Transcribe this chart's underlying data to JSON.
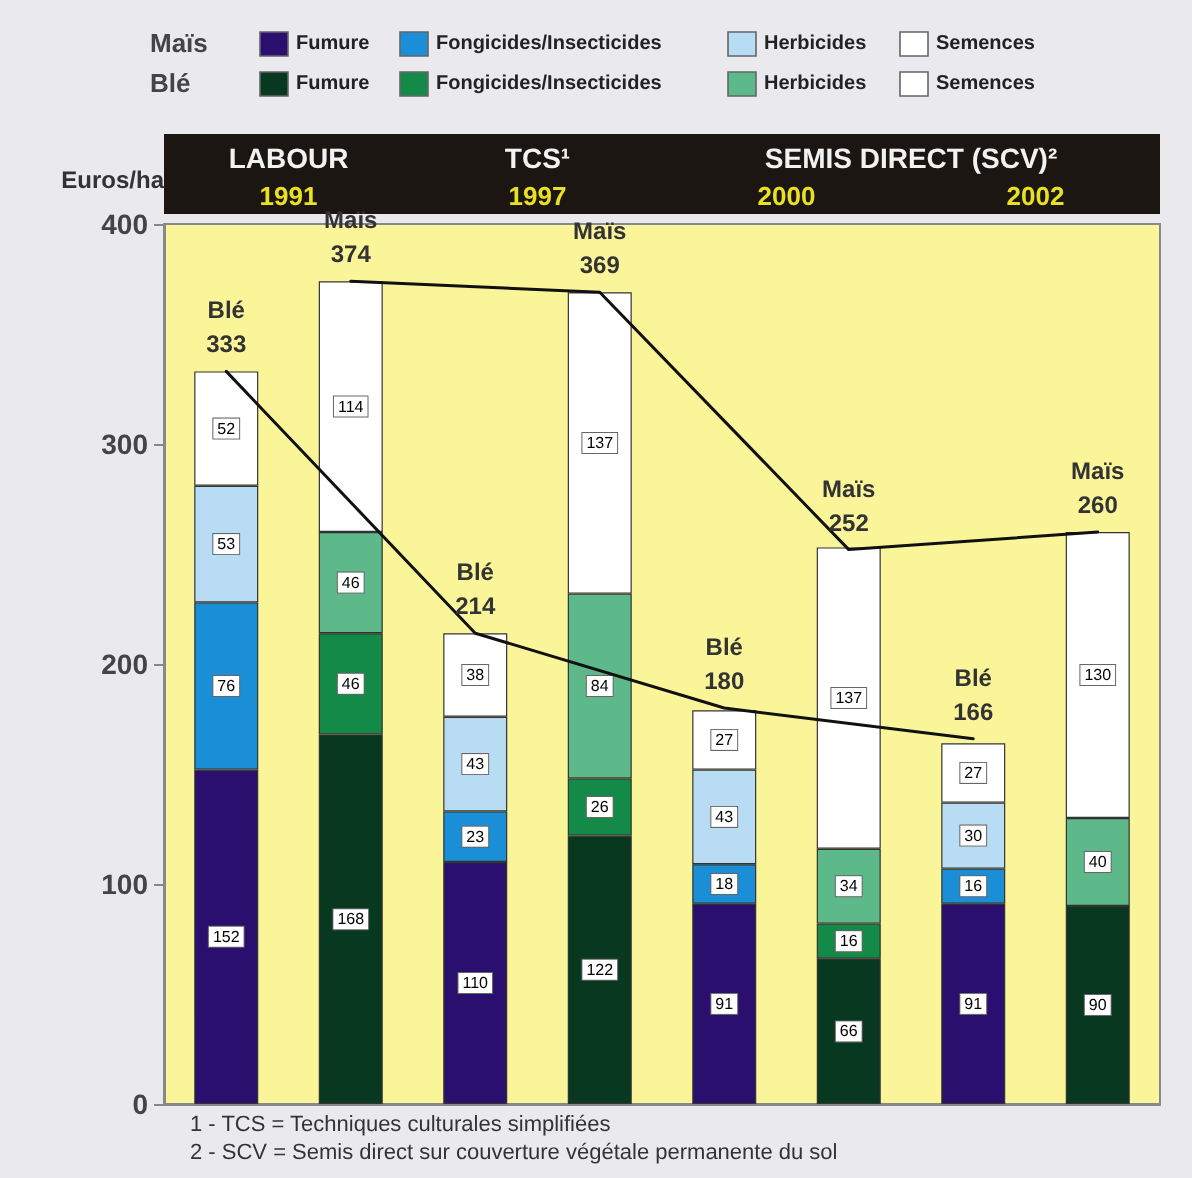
{
  "chart_data": {
    "type": "bar",
    "stacked": true,
    "data_labels": true,
    "legend": "top",
    "grid": false,
    "marker": "none",
    "line_style": "solid",
    "ylabel": "Euros/ha",
    "ylim": [
      0,
      400
    ],
    "yticks": [
      0,
      100,
      200,
      300,
      400
    ],
    "categories": [
      null,
      null,
      null,
      null,
      null,
      null,
      null,
      null
    ],
    "annotations": [
      "Maïs",
      "Blé",
      "LABOUR",
      "1991",
      "TCS¹",
      "1997",
      "SEMIS DIRECT (SCV)²",
      "2000",
      "2002",
      "1 - TCS = Techniques culturales simplifiées",
      "2 - SCV = Semis direct sur couverture végétale permanente du sol"
    ],
    "series": [
      {
        "name": "Fumure",
        "color": "#2a0f6e",
        "values": [
          152,
          null,
          110,
          null,
          91,
          null,
          91,
          null
        ]
      },
      {
        "name": "Fongicides/Insecticides",
        "color": "#1a8fd8",
        "values": [
          76,
          null,
          23,
          null,
          18,
          null,
          16,
          null
        ]
      },
      {
        "name": "Herbicides",
        "color": "#b8dcf4",
        "values": [
          53,
          null,
          43,
          null,
          43,
          null,
          30,
          null
        ]
      },
      {
        "name": "Semences",
        "color": "#ffffff",
        "values": [
          52,
          null,
          38,
          null,
          27,
          null,
          27,
          null
        ]
      },
      {
        "name": "Fumure",
        "color": "#083820",
        "values": [
          null,
          168,
          null,
          122,
          null,
          66,
          null,
          90
        ]
      },
      {
        "name": "Fongicides/Insecticides",
        "color": "#138a48",
        "values": [
          null,
          46,
          null,
          26,
          null,
          16,
          null,
          null
        ]
      },
      {
        "name": "Herbicides",
        "color": "#5db88a",
        "values": [
          null,
          46,
          null,
          84,
          null,
          34,
          null,
          40
        ]
      },
      {
        "name": "Semences",
        "color": "#ffffff",
        "values": [
          null,
          114,
          null,
          137,
          null,
          137,
          null,
          130
        ]
      },
      {
        "type": "line",
        "name": "Blé",
        "color": "#111111",
        "values": [
          333,
          null,
          214,
          null,
          180,
          null,
          166,
          null
        ]
      },
      {
        "type": "line",
        "name": "Maïs",
        "color": "#111111",
        "values": [
          null,
          374,
          null,
          369,
          null,
          252,
          null,
          260
        ]
      }
    ]
  }
}
